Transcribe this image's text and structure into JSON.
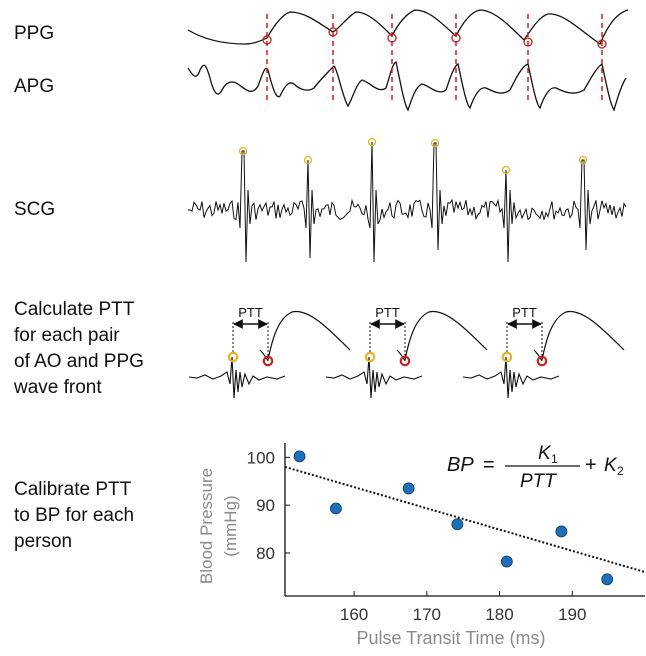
{
  "labels": {
    "ppg": "PPG",
    "apg": "APG",
    "scg": "SCG",
    "step3": [
      "Calculate PTT",
      "for each pair",
      "of AO and PPG",
      "wave front"
    ],
    "step4": [
      "Calibrate PTT",
      "to BP for each",
      "person"
    ]
  },
  "ptt_label": "PTT",
  "colors": {
    "trace": "#111111",
    "marker_red": "#cc1f1f",
    "marker_yellow": "#e6b422",
    "dot_blue": "#1f6fb8",
    "axis_text": "#8a8a8a"
  },
  "formula": {
    "lhs": "BP",
    "equals": "=",
    "num": "K",
    "num_sub": "1",
    "den": "PTT",
    "plus": "+",
    "k2": "K",
    "k2_sub": "2"
  },
  "chart_data": {
    "type": "scatter",
    "xlabel": "Pulse Transit Time (ms)",
    "ylabel": [
      "Blood Pressure",
      "(mmHg)"
    ],
    "xticks": [
      160,
      170,
      180,
      190
    ],
    "yticks": [
      80,
      90,
      100
    ],
    "xlim": [
      150.5,
      200
    ],
    "ylim": [
      71,
      103
    ],
    "grid": false,
    "points": [
      {
        "x": 152.5,
        "y": 100.2
      },
      {
        "x": 157.5,
        "y": 89.3
      },
      {
        "x": 167.5,
        "y": 93.5
      },
      {
        "x": 174.2,
        "y": 86.0
      },
      {
        "x": 181.0,
        "y": 78.2
      },
      {
        "x": 188.5,
        "y": 84.5
      },
      {
        "x": 194.8,
        "y": 74.5
      }
    ],
    "fit_line": {
      "x": [
        150.5,
        200
      ],
      "y": [
        98.0,
        76.0
      ]
    }
  }
}
